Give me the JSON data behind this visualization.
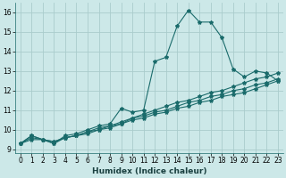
{
  "xlabel": "Humidex (Indice chaleur)",
  "bg_color": "#cce8e8",
  "grid_color": "#aacccc",
  "line_color": "#1a6b6b",
  "xlim": [
    -0.5,
    23.5
  ],
  "ylim": [
    8.8,
    16.5
  ],
  "yticks": [
    9,
    10,
    11,
    12,
    13,
    14,
    15,
    16
  ],
  "xticks": [
    0,
    1,
    2,
    3,
    4,
    5,
    6,
    7,
    8,
    9,
    10,
    11,
    12,
    13,
    14,
    15,
    16,
    17,
    18,
    19,
    20,
    21,
    22,
    23
  ],
  "series": [
    [
      9.3,
      9.7,
      9.5,
      9.3,
      9.7,
      9.8,
      10.0,
      10.2,
      10.3,
      11.1,
      10.9,
      11.0,
      13.5,
      13.7,
      15.3,
      16.1,
      15.5,
      15.5,
      14.7,
      13.1,
      12.7,
      13.0,
      12.9,
      12.5
    ],
    [
      9.3,
      9.7,
      9.5,
      9.3,
      9.6,
      9.7,
      9.9,
      10.1,
      10.2,
      10.3,
      10.6,
      10.8,
      11.0,
      11.2,
      11.4,
      11.5,
      11.7,
      11.9,
      12.0,
      12.2,
      12.4,
      12.6,
      12.7,
      12.9
    ],
    [
      9.3,
      9.6,
      9.5,
      9.4,
      9.6,
      9.7,
      9.9,
      10.0,
      10.2,
      10.4,
      10.6,
      10.7,
      10.9,
      11.0,
      11.2,
      11.4,
      11.5,
      11.7,
      11.8,
      12.0,
      12.1,
      12.3,
      12.4,
      12.6
    ],
    [
      9.3,
      9.5,
      9.5,
      9.4,
      9.6,
      9.7,
      9.8,
      10.0,
      10.1,
      10.3,
      10.5,
      10.6,
      10.8,
      10.9,
      11.1,
      11.2,
      11.4,
      11.5,
      11.7,
      11.8,
      11.9,
      12.1,
      12.3,
      12.5
    ]
  ],
  "xlabel_fontsize": 6.5,
  "tick_fontsize": 5.5
}
